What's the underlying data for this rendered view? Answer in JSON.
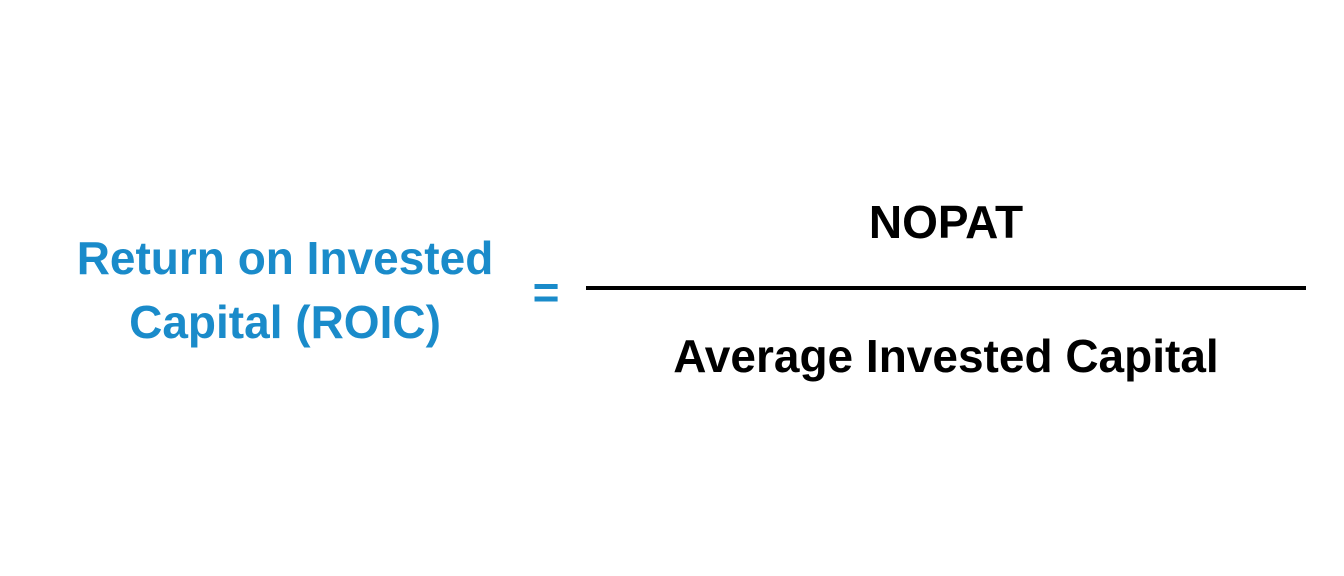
{
  "formula": {
    "lhs_line1": "Return on Invested",
    "lhs_line2": "Capital (ROIC)",
    "equals": "=",
    "numerator": "NOPAT",
    "denominator": "Average Invested Capital"
  },
  "colors": {
    "accent": "#1a8bca",
    "text": "#000000",
    "background": "#ffffff"
  }
}
